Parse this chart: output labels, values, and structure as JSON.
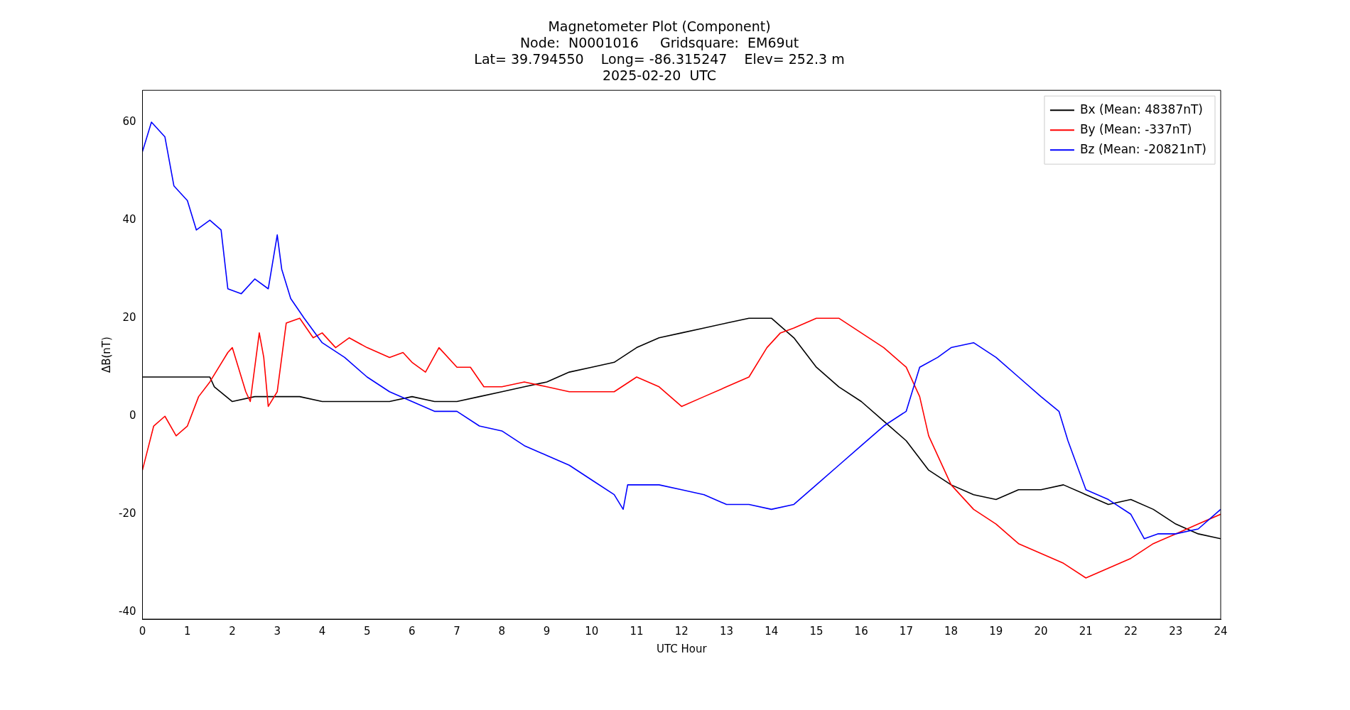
{
  "chart_data": {
    "type": "line",
    "title": "Magnetometer Plot (Component)",
    "subtitle": "Node:  N0001016     Gridsquare:  EM69ut\nLat= 39.794550    Long= -86.315247    Elev= 252.3 m\n2025-02-20  UTC",
    "xlabel": "UTC Hour",
    "ylabel": "ΔB(nT)",
    "xlim": [
      0,
      24
    ],
    "xticks": [
      0,
      1,
      2,
      3,
      4,
      5,
      6,
      7,
      8,
      9,
      10,
      11,
      12,
      13,
      14,
      15,
      16,
      17,
      18,
      19,
      20,
      21,
      22,
      23,
      24
    ],
    "ylim": [
      -41.4,
      66.5
    ],
    "yticks": [
      -40,
      -20,
      0,
      20,
      40,
      60
    ],
    "grid": false,
    "legend": "top right",
    "marker": "none",
    "line_style": "solid",
    "series": [
      {
        "name": "Bx (Mean: 48387nT)",
        "color": "#000000",
        "x": [
          0,
          0.5,
          1,
          1.5,
          1.6,
          2,
          2.5,
          3,
          3.5,
          4,
          4.5,
          5,
          5.5,
          6,
          6.5,
          7,
          7.5,
          8,
          8.5,
          9,
          9.5,
          10,
          10.5,
          11,
          11.5,
          12,
          12.5,
          13,
          13.5,
          14,
          14.5,
          15,
          15.5,
          16,
          16.5,
          17,
          17.5,
          18,
          18.5,
          19,
          19.5,
          20,
          20.5,
          21,
          21.5,
          22,
          22.5,
          23,
          23.5,
          24
        ],
        "values": [
          8,
          8,
          8,
          8,
          6,
          3,
          4,
          4,
          4,
          3,
          3,
          3,
          3,
          4,
          3,
          3,
          4,
          5,
          6,
          7,
          9,
          10,
          11,
          14,
          16,
          17,
          18,
          19,
          20,
          20,
          16,
          10,
          6,
          3,
          -1,
          -5,
          -11,
          -14,
          -16,
          -17,
          -15,
          -15,
          -14,
          -16,
          -18,
          -17,
          -19,
          -22,
          -24,
          -25
        ]
      },
      {
        "name": "By (Mean: -337nT)",
        "color": "#ff0000",
        "x": [
          0,
          0.25,
          0.5,
          0.75,
          1,
          1.25,
          1.5,
          1.9,
          2,
          2.3,
          2.4,
          2.6,
          2.7,
          2.8,
          3,
          3.2,
          3.5,
          3.8,
          4,
          4.3,
          4.6,
          5,
          5.5,
          5.8,
          6,
          6.3,
          6.6,
          7,
          7.3,
          7.6,
          8,
          8.5,
          9,
          9.5,
          10,
          10.5,
          11,
          11.5,
          12,
          12.5,
          13,
          13.5,
          13.9,
          14.2,
          14.5,
          15,
          15.5,
          16,
          16.5,
          17,
          17.3,
          17.5,
          18,
          18.5,
          19,
          19.5,
          20,
          20.5,
          21,
          21.5,
          22,
          22.5,
          23,
          23.5,
          24
        ],
        "values": [
          -11,
          -2,
          0,
          -4,
          -2,
          4,
          7,
          13,
          14,
          5,
          3,
          17,
          12,
          2,
          5,
          19,
          20,
          16,
          17,
          14,
          16,
          14,
          12,
          13,
          11,
          9,
          14,
          10,
          10,
          6,
          6,
          7,
          6,
          5,
          5,
          5,
          8,
          6,
          2,
          4,
          6,
          8,
          14,
          17,
          18,
          20,
          20,
          17,
          14,
          10,
          4,
          -4,
          -14,
          -19,
          -22,
          -26,
          -28,
          -30,
          -33,
          -31,
          -29,
          -26,
          -24,
          -22,
          -20
        ]
      },
      {
        "name": "Bz (Mean: -20821nT)",
        "color": "#0000ff",
        "x": [
          0,
          0.2,
          0.5,
          0.7,
          1,
          1.2,
          1.5,
          1.75,
          1.9,
          2.2,
          2.5,
          2.8,
          3,
          3.1,
          3.3,
          3.6,
          4,
          4.5,
          5,
          5.5,
          6,
          6.5,
          7,
          7.5,
          8,
          8.5,
          9,
          9.5,
          10,
          10.5,
          10.7,
          10.8,
          11.5,
          12,
          12.5,
          13,
          13.5,
          14,
          14.5,
          15,
          15.5,
          16,
          16.5,
          17,
          17.3,
          17.7,
          18,
          18.5,
          19,
          19.5,
          20,
          20.4,
          20.6,
          20.8,
          21,
          21.5,
          22,
          22.3,
          22.6,
          23,
          23.5,
          24
        ],
        "values": [
          54,
          60,
          57,
          47,
          44,
          38,
          40,
          38,
          26,
          25,
          28,
          26,
          37,
          30,
          24,
          20,
          15,
          12,
          8,
          5,
          3,
          1,
          1,
          -2,
          -3,
          -6,
          -8,
          -10,
          -13,
          -16,
          -19,
          -14,
          -14,
          -15,
          -16,
          -18,
          -18,
          -19,
          -18,
          -14,
          -10,
          -6,
          -2,
          1,
          10,
          12,
          14,
          15,
          12,
          8,
          4,
          1,
          -5,
          -10,
          -15,
          -17,
          -20,
          -25,
          -24,
          -24,
          -23,
          -19
        ]
      }
    ]
  }
}
